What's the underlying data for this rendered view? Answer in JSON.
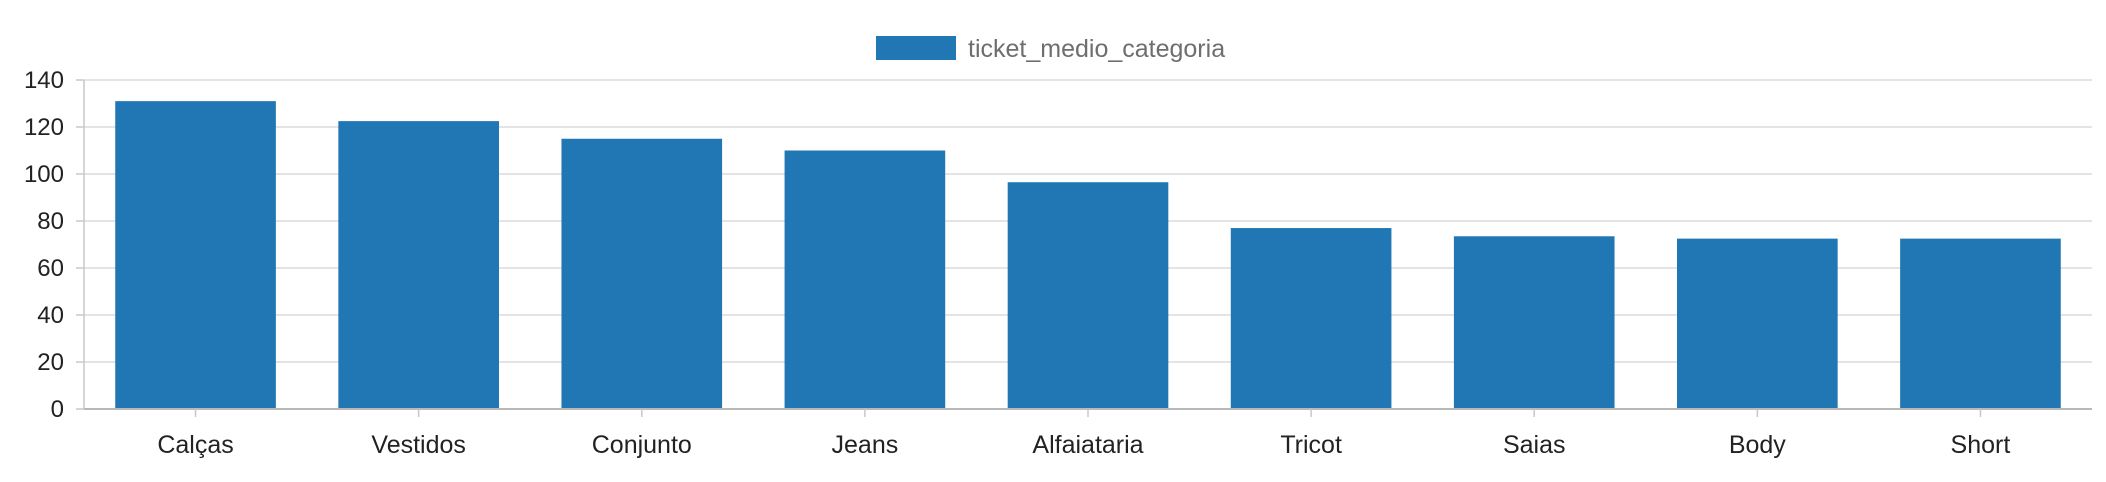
{
  "chart_data": {
    "type": "bar",
    "categories": [
      "Calças",
      "Vestidos",
      "Conjunto",
      "Jeans",
      "Alfaiataria",
      "Tricot",
      "Saias",
      "Body",
      "Short"
    ],
    "series": [
      {
        "name": "ticket_medio_categoria",
        "values": [
          131,
          122.5,
          115,
          110,
          96.5,
          77,
          73.5,
          72.5,
          72.5
        ],
        "color": "#2077b4"
      }
    ],
    "yticks": [
      0,
      20,
      40,
      60,
      80,
      100,
      120,
      140
    ],
    "ylim": [
      0,
      140
    ],
    "grid": true,
    "legend": "top-center",
    "xlabel": "",
    "ylabel": "",
    "title": ""
  }
}
